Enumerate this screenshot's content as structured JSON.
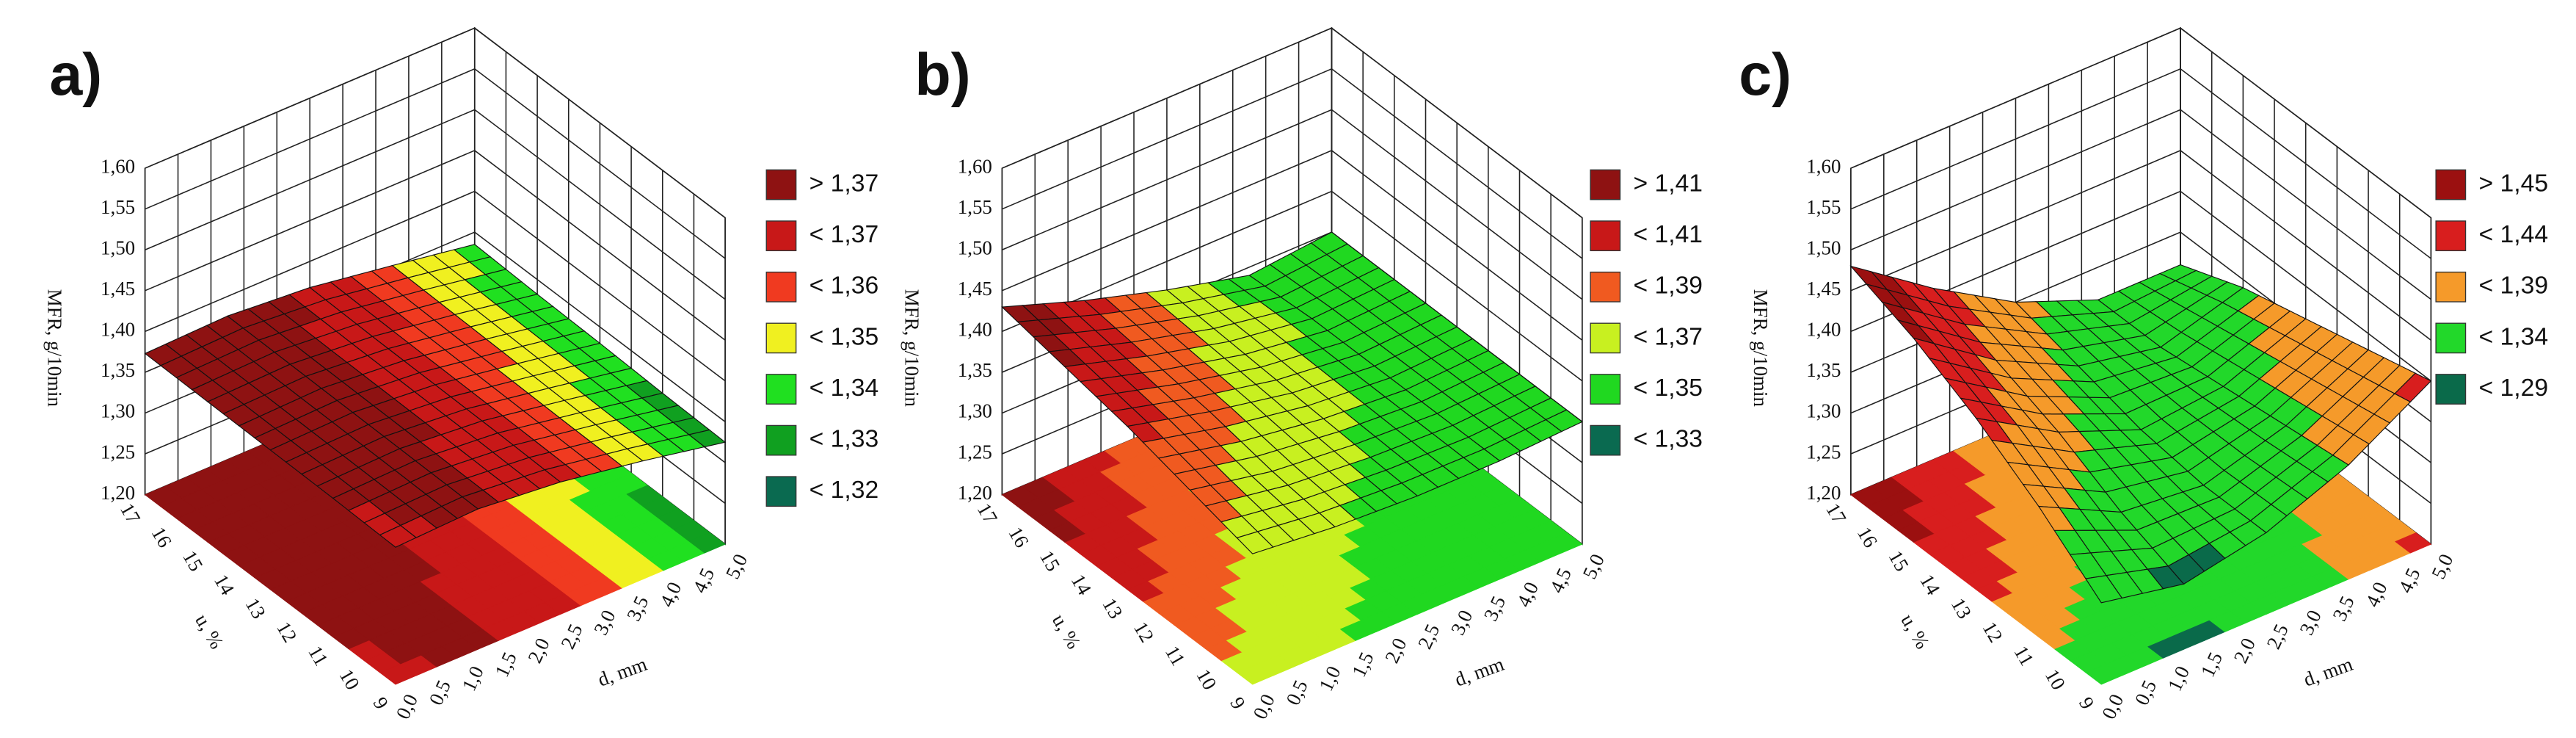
{
  "chart_data": [
    {
      "type": "surface",
      "panel_label": "a)",
      "zlabel": "MFR, g/10min",
      "xlabel": "d, mm",
      "ylabel": "u, %",
      "x": [
        0,
        1.25,
        2.5,
        3.75,
        5
      ],
      "y": [
        9,
        11,
        13,
        15,
        17
      ],
      "z": [
        [
          1.368,
          1.372,
          1.362,
          1.345,
          1.325
        ],
        [
          1.37,
          1.373,
          1.364,
          1.346,
          1.327
        ],
        [
          1.371,
          1.374,
          1.365,
          1.348,
          1.33
        ],
        [
          1.372,
          1.375,
          1.366,
          1.35,
          1.332
        ],
        [
          1.373,
          1.376,
          1.368,
          1.352,
          1.335
        ]
      ],
      "xlim": [
        0,
        5
      ],
      "ylim": [
        9,
        17
      ],
      "zlim": [
        1.2,
        1.6
      ],
      "xticks": [
        {
          "value": 0,
          "label": "0,0"
        },
        {
          "value": 0.5,
          "label": "0,5"
        },
        {
          "value": 1,
          "label": "1,0"
        },
        {
          "value": 1.5,
          "label": "1,5"
        },
        {
          "value": 2,
          "label": "2,0"
        },
        {
          "value": 2.5,
          "label": "2,5"
        },
        {
          "value": 3,
          "label": "3,0"
        },
        {
          "value": 3.5,
          "label": "3,5"
        },
        {
          "value": 4,
          "label": "4,0"
        },
        {
          "value": 4.5,
          "label": "4,5"
        },
        {
          "value": 5,
          "label": "5,0"
        }
      ],
      "yticks": [
        9,
        10,
        11,
        12,
        13,
        14,
        15,
        16,
        17
      ],
      "zticks": [
        {
          "value": 1.2,
          "label": "1,20"
        },
        {
          "value": 1.25,
          "label": "1,25"
        },
        {
          "value": 1.3,
          "label": "1,30"
        },
        {
          "value": 1.35,
          "label": "1,35"
        },
        {
          "value": 1.4,
          "label": "1,40"
        },
        {
          "value": 1.45,
          "label": "1,45"
        },
        {
          "value": 1.5,
          "label": "1,50"
        },
        {
          "value": 1.55,
          "label": "1,55"
        },
        {
          "value": 1.6,
          "label": "1,60"
        }
      ],
      "legend": [
        {
          "value": 1.37,
          "label": "> 1,37",
          "color": "#8e1212"
        },
        {
          "value": 1.37,
          "label": "< 1,37",
          "color": "#c81818"
        },
        {
          "value": 1.36,
          "label": "< 1,36",
          "color": "#f03a20"
        },
        {
          "value": 1.35,
          "label": "< 1,35",
          "color": "#f0f020"
        },
        {
          "value": 1.34,
          "label": "< 1,34",
          "color": "#20e020"
        },
        {
          "value": 1.33,
          "label": "< 1,33",
          "color": "#10a020"
        },
        {
          "value": 1.32,
          "label": "< 1,32",
          "color": "#0a6a50"
        }
      ]
    },
    {
      "type": "surface",
      "panel_label": "b)",
      "zlabel": "MFR, g/10min",
      "xlabel": "d, mm",
      "ylabel": "u, %",
      "x": [
        0,
        1.25,
        2.5,
        3.75,
        5
      ],
      "y": [
        9,
        11,
        13,
        15,
        17
      ],
      "z": [
        [
          1.36,
          1.35,
          1.345,
          1.345,
          1.35
        ],
        [
          1.38,
          1.36,
          1.35,
          1.345,
          1.35
        ],
        [
          1.4,
          1.375,
          1.355,
          1.345,
          1.35
        ],
        [
          1.415,
          1.385,
          1.36,
          1.345,
          1.35
        ],
        [
          1.43,
          1.395,
          1.365,
          1.34,
          1.35
        ]
      ],
      "xlim": [
        0,
        5
      ],
      "ylim": [
        9,
        17
      ],
      "zlim": [
        1.2,
        1.6
      ],
      "xticks": [
        {
          "value": 0,
          "label": "0,0"
        },
        {
          "value": 0.5,
          "label": "0,5"
        },
        {
          "value": 1,
          "label": "1,0"
        },
        {
          "value": 1.5,
          "label": "1,5"
        },
        {
          "value": 2,
          "label": "2,0"
        },
        {
          "value": 2.5,
          "label": "2,5"
        },
        {
          "value": 3,
          "label": "3,0"
        },
        {
          "value": 3.5,
          "label": "3,5"
        },
        {
          "value": 4,
          "label": "4,0"
        },
        {
          "value": 4.5,
          "label": "4,5"
        },
        {
          "value": 5,
          "label": "5,0"
        }
      ],
      "yticks": [
        9,
        10,
        11,
        12,
        13,
        14,
        15,
        16,
        17
      ],
      "zticks": [
        {
          "value": 1.2,
          "label": "1,20"
        },
        {
          "value": 1.25,
          "label": "1,25"
        },
        {
          "value": 1.3,
          "label": "1,30"
        },
        {
          "value": 1.35,
          "label": "1,35"
        },
        {
          "value": 1.4,
          "label": "1,40"
        },
        {
          "value": 1.45,
          "label": "1,45"
        },
        {
          "value": 1.5,
          "label": "1,50"
        },
        {
          "value": 1.55,
          "label": "1,55"
        },
        {
          "value": 1.6,
          "label": "1,60"
        }
      ],
      "legend": [
        {
          "value": 1.41,
          "label": "> 1,41",
          "color": "#8e1212"
        },
        {
          "value": 1.41,
          "label": "< 1,41",
          "color": "#c81818"
        },
        {
          "value": 1.39,
          "label": "< 1,39",
          "color": "#f05a20"
        },
        {
          "value": 1.37,
          "label": "< 1,37",
          "color": "#c8f020"
        },
        {
          "value": 1.35,
          "label": "< 1,35",
          "color": "#20d820"
        },
        {
          "value": 1.33,
          "label": "< 1,33",
          "color": "#0a6a50"
        }
      ]
    },
    {
      "type": "surface",
      "panel_label": "c)",
      "zlabel": "MFR, g/10min",
      "xlabel": "d, mm",
      "ylabel": "u, %",
      "x": [
        0,
        1.25,
        2.5,
        3.75,
        5
      ],
      "y": [
        9,
        11,
        13,
        15,
        17
      ],
      "z": [
        [
          1.3,
          1.28,
          1.3,
          1.34,
          1.4
        ],
        [
          1.36,
          1.31,
          1.3,
          1.33,
          1.38
        ],
        [
          1.41,
          1.35,
          1.31,
          1.32,
          1.36
        ],
        [
          1.45,
          1.38,
          1.33,
          1.31,
          1.34
        ],
        [
          1.48,
          1.41,
          1.35,
          1.31,
          1.31
        ]
      ],
      "xlim": [
        0,
        5
      ],
      "ylim": [
        9,
        17
      ],
      "zlim": [
        1.2,
        1.6
      ],
      "xticks": [
        {
          "value": 0,
          "label": "0,0"
        },
        {
          "value": 0.5,
          "label": "0,5"
        },
        {
          "value": 1,
          "label": "1,0"
        },
        {
          "value": 1.5,
          "label": "1,5"
        },
        {
          "value": 2,
          "label": "2,0"
        },
        {
          "value": 2.5,
          "label": "2,5"
        },
        {
          "value": 3,
          "label": "3,0"
        },
        {
          "value": 3.5,
          "label": "3,5"
        },
        {
          "value": 4,
          "label": "4,0"
        },
        {
          "value": 4.5,
          "label": "4,5"
        },
        {
          "value": 5,
          "label": "5,0"
        }
      ],
      "yticks": [
        9,
        10,
        11,
        12,
        13,
        14,
        15,
        16,
        17
      ],
      "zticks": [
        {
          "value": 1.2,
          "label": "1,20"
        },
        {
          "value": 1.25,
          "label": "1,25"
        },
        {
          "value": 1.3,
          "label": "1,30"
        },
        {
          "value": 1.35,
          "label": "1,35"
        },
        {
          "value": 1.4,
          "label": "1,40"
        },
        {
          "value": 1.45,
          "label": "1,45"
        },
        {
          "value": 1.5,
          "label": "1,50"
        },
        {
          "value": 1.55,
          "label": "1,55"
        },
        {
          "value": 1.6,
          "label": "1,60"
        }
      ],
      "legend": [
        {
          "value": 1.45,
          "label": "> 1,45",
          "color": "#9b1010"
        },
        {
          "value": 1.44,
          "label": "< 1,44",
          "color": "#d81e1e"
        },
        {
          "value": 1.39,
          "label": "< 1,39",
          "color": "#f59a2a"
        },
        {
          "value": 1.34,
          "label": "< 1,34",
          "color": "#22d82a"
        },
        {
          "value": 1.29,
          "label": "< 1,29",
          "color": "#0a6a4a"
        }
      ]
    }
  ]
}
